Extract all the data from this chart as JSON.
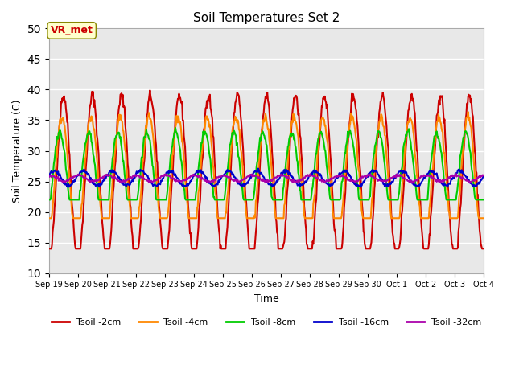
{
  "title": "Soil Temperatures Set 2",
  "xlabel": "Time",
  "ylabel": "Soil Temperature (C)",
  "ylim": [
    10,
    50
  ],
  "yticks": [
    10,
    15,
    20,
    25,
    30,
    35,
    40,
    45,
    50
  ],
  "annotation_text": "VR_met",
  "bg_color": "#e8e8e8",
  "series_names": [
    "Tsoil -2cm",
    "Tsoil -4cm",
    "Tsoil -8cm",
    "Tsoil -16cm",
    "Tsoil -32cm"
  ],
  "series_colors": [
    "#cc0000",
    "#ff8800",
    "#00cc00",
    "#0000cc",
    "#aa00aa"
  ],
  "series_lw": [
    1.5,
    1.5,
    1.5,
    1.5,
    1.5
  ],
  "xtick_labels": [
    "Sep 19",
    "Sep 20",
    "Sep 21",
    "Sep 22",
    "Sep 23",
    "Sep 24",
    "Sep 25",
    "Sep 26",
    "Sep 27",
    "Sep 28",
    "Sep 29",
    "Sep 30",
    "Oct 1",
    "Oct 2",
    "Oct 3",
    "Oct 4"
  ]
}
